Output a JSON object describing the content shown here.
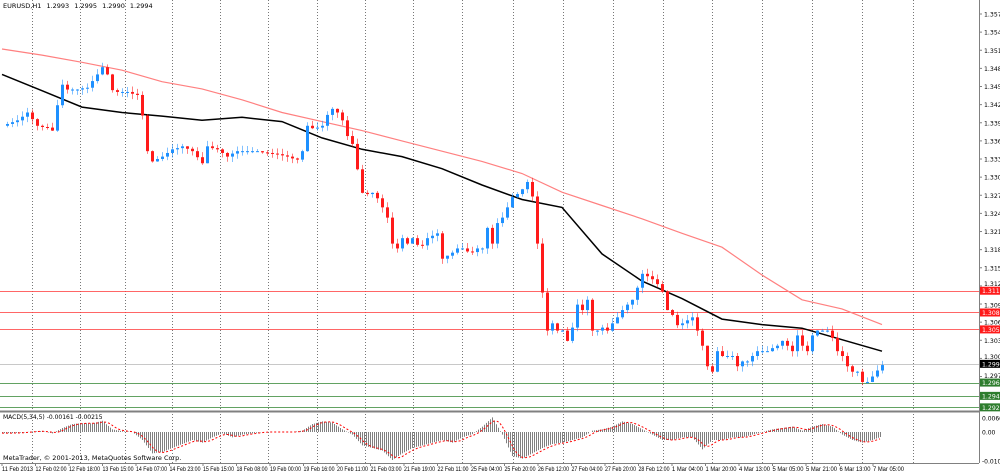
{
  "header": {
    "symbol": "EURUSD,H1",
    "open": "1.2993",
    "high": "1.2995",
    "low": "1.2990",
    "close": "1.2994"
  },
  "macd_header": {
    "label": "MACD(5,34,5)",
    "main": "-0.00161",
    "signal": "-0.00215"
  },
  "copyright": "MetaTrader, © 2001-2013, MetaQuotes Software Corp.",
  "colors": {
    "bull": "#1e90ff",
    "bear": "#ff1a1a",
    "ma_fast": "#000000",
    "ma_slow": "#ff8080",
    "resistance": "#ff4040",
    "support": "#3c8c3c",
    "current": "#c8c8c8",
    "histogram": "#808080",
    "signal": "#ff0000"
  },
  "price_axis": [
    "1.3575",
    "1.3545",
    "1.3515",
    "1.3485",
    "1.3455",
    "1.3425",
    "1.3395",
    "1.3365",
    "1.3335",
    "1.3305",
    "1.3275",
    "1.3245",
    "1.3215",
    "1.3185",
    "1.3155",
    "1.3125",
    "1.3095",
    "1.3065",
    "1.3035",
    "1.3005",
    "1.2975"
  ],
  "levels": [
    {
      "price": "1.3117",
      "kind": "resistance"
    },
    {
      "price": "1.3081",
      "kind": "resistance"
    },
    {
      "price": "1.3053",
      "kind": "resistance"
    },
    {
      "price": "1.2996",
      "kind": "current"
    },
    {
      "price": "1.2965",
      "kind": "support"
    },
    {
      "price": "1.2943",
      "kind": "support"
    },
    {
      "price": "1.2924",
      "kind": "support"
    }
  ],
  "macd_axis": [
    "0.00601",
    "0.00",
    "-0.0104"
  ],
  "time_axis": [
    "11 Feb 2013",
    "12 Feb 02:00",
    "12 Feb 18:00",
    "13 Feb 15:00",
    "14 Feb 07:00",
    "14 Feb 23:00",
    "15 Feb 15:00",
    "18 Feb 08:00",
    "19 Feb 00:00",
    "19 Feb 16:00",
    "20 Feb 11:00",
    "21 Feb 03:00",
    "21 Feb 19:00",
    "22 Feb 11:00",
    "25 Feb 04:00",
    "25 Feb 20:00",
    "26 Feb 12:00",
    "27 Feb 04:00",
    "27 Feb 20:00",
    "28 Feb 12:00",
    "1 Mar 04:00",
    "1 Mar 20:00",
    "4 Mar 13:00",
    "5 Mar 05:00",
    "5 Mar 21:00",
    "6 Mar 13:00",
    "7 Mar 05:00"
  ],
  "chart_data": {
    "type": "candlestick",
    "symbol": "EURUSD",
    "timeframe": "H1",
    "ylim": [
      1.2924,
      1.3575
    ],
    "grid": "vertical dotted",
    "closes": [
      1.339,
      1.3393,
      1.3396,
      1.3399,
      1.3405,
      1.3412,
      1.3401,
      1.339,
      1.3388,
      1.3387,
      1.3382,
      1.3424,
      1.3458,
      1.345,
      1.345,
      1.345,
      1.3452,
      1.3453,
      1.3464,
      1.3475,
      1.3487,
      1.3475,
      1.3449,
      1.3446,
      1.3446,
      1.3446,
      1.3443,
      1.3441,
      1.3407,
      1.3348,
      1.3331,
      1.3335,
      1.3339,
      1.3345,
      1.3351,
      1.3353,
      1.3356,
      1.3352,
      1.3348,
      1.3338,
      1.3328,
      1.3356,
      1.3353,
      1.3351,
      1.3345,
      1.3339,
      1.3344,
      1.3348,
      1.3348,
      1.3348,
      1.3348,
      1.3348,
      1.3346,
      1.3345,
      1.3344,
      1.3343,
      1.3341,
      1.3339,
      1.3336,
      1.3334,
      1.3348,
      1.339,
      1.3386,
      1.3387,
      1.339,
      1.3408,
      1.3418,
      1.3412,
      1.3399,
      1.3373,
      1.336,
      1.3318,
      1.3279,
      1.3277,
      1.3279,
      1.327,
      1.3255,
      1.3238,
      1.3195,
      1.3187,
      1.3204,
      1.3195,
      1.3204,
      1.3193,
      1.3192,
      1.3204,
      1.3208,
      1.3212,
      1.317,
      1.3175,
      1.318,
      1.3187,
      1.3187,
      1.3182,
      1.3181,
      1.3187,
      1.3187,
      1.3221,
      1.3195,
      1.3229,
      1.3238,
      1.3255,
      1.3272,
      1.3277,
      1.3285,
      1.3297,
      1.3273,
      1.3195,
      1.3114,
      1.3051,
      1.3063,
      1.3051,
      1.3051,
      1.3034,
      1.3056,
      1.3094,
      1.3085,
      1.3102,
      1.3051,
      1.3051,
      1.3056,
      1.3051,
      1.3063,
      1.3073,
      1.3085,
      1.3094,
      1.3102,
      1.3122,
      1.3145,
      1.3141,
      1.3136,
      1.3128,
      1.3116,
      1.3085,
      1.3077,
      1.306,
      1.3063,
      1.3068,
      1.3073,
      1.3051,
      1.3026,
      1.2992,
      1.2983,
      1.3017,
      1.3009,
      1.3009,
      1.3009,
      1.2992,
      1.3,
      1.3,
      1.3009,
      1.3017,
      1.3017,
      1.3017,
      1.3022,
      1.3026,
      1.3034,
      1.3026,
      1.3017,
      1.3043,
      1.3026,
      1.3017,
      1.3043,
      1.3051,
      1.3051,
      1.3051,
      1.3039,
      1.3017,
      1.3009,
      1.2992,
      1.2983,
      1.2983,
      1.2966,
      1.2966,
      1.2975,
      1.2985,
      1.2994
    ],
    "ma_fast": [
      1.3475,
      1.3448,
      1.3421,
      1.3412,
      1.3406,
      1.3399,
      1.3404,
      1.3397,
      1.337,
      1.3351,
      1.3339,
      1.3319,
      1.3292,
      1.3268,
      1.3255,
      1.3178,
      1.3133,
      1.3104,
      1.307,
      1.3061,
      1.3055,
      1.3036,
      1.3017
    ],
    "ma_slow": [
      1.3517,
      1.3507,
      1.3495,
      1.3482,
      1.3463,
      1.3451,
      1.3433,
      1.3412,
      1.3397,
      1.3382,
      1.3365,
      1.3348,
      1.3331,
      1.3311,
      1.328,
      1.3258,
      1.3236,
      1.3212,
      1.3189,
      1.3143,
      1.3102,
      1.3087,
      1.3061
    ],
    "macd": {
      "name": "MACD(5,34,5)",
      "ylim": [
        -0.0104,
        0.00601
      ],
      "histogram": [
        -0.0004,
        -0.0004,
        -0.0002,
        0.0002,
        0.0003,
        -0.0005,
        0.0015,
        0.003,
        0.0033,
        0.0032,
        0.0042,
        0.001,
        0.0003,
        0,
        -0.003,
        -0.008,
        -0.0075,
        -0.006,
        -0.0045,
        -0.003,
        -0.004,
        -0.002,
        -0.0005,
        -0.002,
        -0.001,
        -0.0005,
        0,
        0,
        0,
        0,
        0.0005,
        0.003,
        0.004,
        0.0035,
        0.001,
        -0.001,
        -0.005,
        -0.006,
        -0.007,
        -0.0105,
        -0.008,
        -0.006,
        -0.005,
        -0.004,
        -0.003,
        -0.004,
        -0.002,
        -0.0008,
        0.002,
        0.0055,
        -0.001,
        -0.009,
        -0.01,
        -0.008,
        -0.006,
        -0.0045,
        -0.004,
        -0.003,
        -0.002,
        0.0005,
        0.001,
        0.002,
        0.004,
        0.003,
        0.001,
        -0.001,
        -0.003,
        -0.003,
        -0.002,
        -0.002,
        -0.0065,
        -0.003,
        -0.003,
        -0.002,
        -0.002,
        -0.001,
        0,
        0.001,
        0.0015,
        0.002,
        0.0005,
        0.002,
        0.003,
        0.002,
        -0.001,
        -0.003,
        -0.004,
        -0.003,
        -0.0016
      ]
    }
  }
}
